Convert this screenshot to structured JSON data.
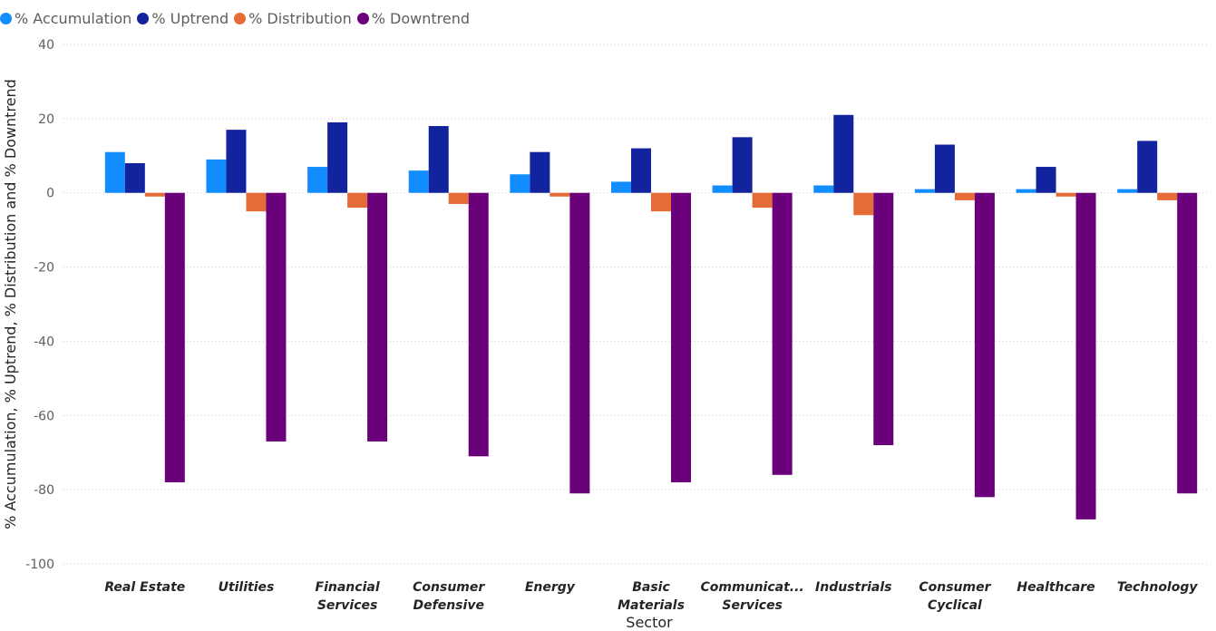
{
  "chart_data": {
    "type": "bar",
    "xlabel": "Sector",
    "ylabel": "% Accumulation, % Uptrend, % Distribution and % Downtrend",
    "ylim": [
      -100,
      40
    ],
    "yticks": [
      40,
      20,
      0,
      -20,
      -40,
      -60,
      -80,
      -100
    ],
    "grid": true,
    "legend_position": "top-left",
    "categories": [
      [
        "Real Estate"
      ],
      [
        "Utilities"
      ],
      [
        "Financial",
        "Services"
      ],
      [
        "Consumer",
        "Defensive"
      ],
      [
        "Energy"
      ],
      [
        "Basic",
        "Materials"
      ],
      [
        "Communicat...",
        "Services"
      ],
      [
        "Industrials"
      ],
      [
        "Consumer",
        "Cyclical"
      ],
      [
        "Healthcare"
      ],
      [
        "Technology"
      ]
    ],
    "series": [
      {
        "name": "% Accumulation",
        "color": "#118dff",
        "values": [
          11,
          9,
          7,
          6,
          5,
          3,
          2,
          2,
          1,
          1,
          1
        ]
      },
      {
        "name": "% Uptrend",
        "color": "#12239e",
        "values": [
          8,
          17,
          19,
          18,
          11,
          12,
          15,
          21,
          13,
          7,
          14
        ]
      },
      {
        "name": "% Distribution",
        "color": "#e66c37",
        "values": [
          -1,
          -5,
          -4,
          -3,
          -1,
          -5,
          -4,
          -6,
          -2,
          -1,
          -2
        ]
      },
      {
        "name": "% Downtrend",
        "color": "#6b007b",
        "values": [
          -78,
          -67,
          -67,
          -71,
          -81,
          -78,
          -76,
          -68,
          -82,
          -88,
          -81
        ]
      }
    ]
  }
}
